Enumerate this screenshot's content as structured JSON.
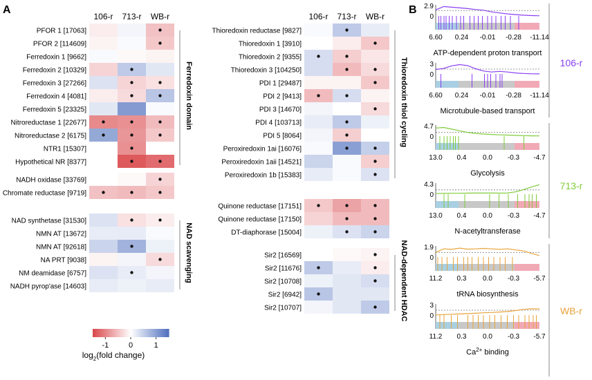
{
  "panel_a": {
    "letter": "A",
    "columns": [
      "106-r",
      "713-r",
      "WB-r"
    ],
    "colorbar": {
      "ticks": [
        {
          "label": "-1",
          "value": -1
        },
        {
          "label": "0",
          "value": 0
        },
        {
          "label": "1",
          "value": 1
        }
      ],
      "label": "log",
      "label_sub": "2",
      "label_tail": "(fold change)",
      "range": [
        -1.5,
        1.5
      ],
      "neg_color": "#d9464a",
      "pos_color": "#4f6fbd"
    }
  },
  "panel_b": {
    "letter": "B",
    "groups": [
      {
        "label": "106-r",
        "color": "#8a3ff0"
      },
      {
        "label": "713-r",
        "color": "#7fcc3a"
      },
      {
        "label": "WB-r",
        "color": "#e8a33a"
      }
    ]
  },
  "chart_data": [
    {
      "type": "heatmap",
      "title": "Ferredoxin domain / NAD scavenging (left column)",
      "columns": [
        "106-r",
        "713-r",
        "WB-r"
      ],
      "colorbar_range": [
        -1.5,
        1.5
      ],
      "groups": [
        {
          "label": "Ferredoxin domain",
          "rows": [
            {
              "name": "PFOR 1 [17063]",
              "values": [
                -0.15,
                0.1,
                -0.5
              ],
              "sig": [
                false,
                false,
                true
              ]
            },
            {
              "name": "PFOR 2 [114609]",
              "values": [
                -0.1,
                0.05,
                -0.45
              ],
              "sig": [
                false,
                false,
                true
              ]
            },
            {
              "name": "Ferredoxin 1 [9662]",
              "values": [
                0.05,
                -0.05,
                -0.1
              ],
              "sig": [
                false,
                false,
                false
              ]
            },
            {
              "name": "Ferredoxin 2 [10329]",
              "values": [
                -0.35,
                0.55,
                0.25
              ],
              "sig": [
                false,
                true,
                false
              ]
            },
            {
              "name": "Ferredoxin 3 [27266]",
              "values": [
                0.3,
                -0.35,
                -0.25
              ],
              "sig": [
                false,
                true,
                true
              ]
            },
            {
              "name": "Ferredoxin 4 [4081]",
              "values": [
                -0.15,
                -0.3,
                0.6
              ],
              "sig": [
                false,
                true,
                true
              ]
            },
            {
              "name": "Ferredoxin 5 [23325]",
              "values": [
                0.25,
                1.05,
                0.05
              ],
              "sig": [
                false,
                false,
                false
              ]
            },
            {
              "name": "Nitroreductase 1 [22677]",
              "values": [
                -0.95,
                -0.9,
                -0.55
              ],
              "sig": [
                true,
                true,
                true
              ]
            },
            {
              "name": "Nitroreductase 2 [6175]",
              "values": [
                0.9,
                -0.85,
                -0.45
              ],
              "sig": [
                true,
                true,
                true
              ]
            },
            {
              "name": "NTR1 [15307]",
              "values": [
                0.0,
                -0.9,
                0.0
              ],
              "sig": [
                false,
                true,
                false
              ]
            },
            {
              "name": "Hypothetical NR [8377]",
              "values": [
                0.0,
                -1.35,
                -1.2
              ],
              "sig": [
                false,
                true,
                true
              ]
            }
          ]
        },
        {
          "label": "",
          "rows": [
            {
              "name": "NADH oxidase [33769]",
              "values": [
                0.0,
                -0.05,
                -0.35
              ],
              "sig": [
                false,
                false,
                true
              ]
            },
            {
              "name": "Chromate reductase [9719]",
              "values": [
                -0.5,
                -0.55,
                -0.45
              ],
              "sig": [
                true,
                true,
                true
              ]
            }
          ]
        },
        {
          "label": "NAD scavenging",
          "rows": [
            {
              "name": "NAD synthetase [31530]",
              "values": [
                0.3,
                -0.25,
                -0.15
              ],
              "sig": [
                false,
                true,
                true
              ]
            },
            {
              "name": "NMN AT [13672]",
              "values": [
                0.2,
                0.2,
                0.05
              ],
              "sig": [
                false,
                false,
                false
              ]
            },
            {
              "name": "NMN AT [92618]",
              "values": [
                0.45,
                0.8,
                0.15
              ],
              "sig": [
                false,
                true,
                false
              ]
            },
            {
              "name": "NA PRT [9038]",
              "values": [
                -0.1,
                0.1,
                -0.3
              ],
              "sig": [
                false,
                false,
                true
              ]
            },
            {
              "name": "NM deamidase [6757]",
              "values": [
                0.3,
                0.2,
                0.1
              ],
              "sig": [
                false,
                true,
                false
              ]
            },
            {
              "name": "NADH pyrop'ase [14603]",
              "values": [
                0.2,
                0.15,
                0.2
              ],
              "sig": [
                false,
                false,
                false
              ]
            }
          ]
        }
      ]
    },
    {
      "type": "heatmap",
      "title": "Thioredoxin thiol cycling / NAD-dependent HDAC (right column)",
      "columns": [
        "106-r",
        "713-r",
        "WB-r"
      ],
      "colorbar_range": [
        -1.5,
        1.5
      ],
      "groups": [
        {
          "label": "Thioredoxin thiol cycling",
          "rows": [
            {
              "name": "Thioredoxin reductase [9827]",
              "values": [
                0.05,
                0.55,
                0.2
              ],
              "sig": [
                false,
                true,
                false
              ]
            },
            {
              "name": "Thioredoxin 1 [3910]",
              "values": [
                0.0,
                -0.15,
                -0.45
              ],
              "sig": [
                false,
                false,
                true
              ]
            },
            {
              "name": "Thioredoxin 2 [9355]",
              "values": [
                0.35,
                -0.4,
                -0.2
              ],
              "sig": [
                true,
                true,
                false
              ]
            },
            {
              "name": "Thioredoxin 3 [104250]",
              "values": [
                0.35,
                -0.55,
                -0.3
              ],
              "sig": [
                false,
                true,
                true
              ]
            },
            {
              "name": "PDI 1 [29487]",
              "values": [
                -0.1,
                -0.1,
                -0.45
              ],
              "sig": [
                false,
                false,
                true
              ]
            },
            {
              "name": "PDI 2 [9413]",
              "values": [
                -0.55,
                0.35,
                -0.1
              ],
              "sig": [
                true,
                true,
                false
              ]
            },
            {
              "name": "PDI 3 [14670]",
              "values": [
                0.1,
                0.0,
                -0.3
              ],
              "sig": [
                false,
                false,
                true
              ]
            },
            {
              "name": "PDI 4 [103713]",
              "values": [
                0.2,
                0.55,
                0.15
              ],
              "sig": [
                false,
                true,
                false
              ]
            },
            {
              "name": "PDI 5 [8064]",
              "values": [
                0.1,
                -0.4,
                0.0
              ],
              "sig": [
                false,
                true,
                false
              ]
            },
            {
              "name": "Peroxiredoxin 1ai [16076]",
              "values": [
                0.05,
                1.0,
                0.5
              ],
              "sig": [
                false,
                true,
                true
              ]
            },
            {
              "name": "Peroxiredoxin 1aii [14521]",
              "values": [
                0.45,
                0.05,
                -0.4
              ],
              "sig": [
                false,
                false,
                true
              ]
            },
            {
              "name": "Peroxiredoxin 1b [15383]",
              "values": [
                0.2,
                0.05,
                0.3
              ],
              "sig": [
                false,
                false,
                true
              ]
            }
          ]
        },
        {
          "label": "",
          "rows": [
            {
              "name": "Quinone reductase [17151]",
              "values": [
                -0.45,
                -0.75,
                -0.55
              ],
              "sig": [
                true,
                true,
                true
              ]
            },
            {
              "name": "Quinone reductase [17150]",
              "values": [
                -0.35,
                -0.55,
                -0.55
              ],
              "sig": [
                false,
                true,
                true
              ]
            },
            {
              "name": "DT-diaphorase [15004]",
              "values": [
                0.15,
                0.3,
                0.45
              ],
              "sig": [
                false,
                true,
                true
              ]
            }
          ]
        },
        {
          "label": "NAD-dependent HDAC",
          "rows": [
            {
              "name": "Sir2 [16569]",
              "values": [
                0.0,
                -0.05,
                -0.1
              ],
              "sig": [
                false,
                false,
                true
              ]
            },
            {
              "name": "Sir2 [11676]",
              "values": [
                0.55,
                0.2,
                -0.15
              ],
              "sig": [
                true,
                false,
                true
              ]
            },
            {
              "name": "Sir2 [10708]",
              "values": [
                0.15,
                0.25,
                0.35
              ],
              "sig": [
                false,
                false,
                true
              ]
            },
            {
              "name": "Sir2 [6942]",
              "values": [
                0.6,
                0.25,
                0.25
              ],
              "sig": [
                true,
                false,
                false
              ]
            },
            {
              "name": "Sir2 [10707]",
              "values": [
                0.1,
                0.25,
                0.55
              ],
              "sig": [
                false,
                false,
                true
              ]
            }
          ]
        }
      ]
    },
    {
      "type": "line",
      "title": "ATP-dependent proton transport",
      "group": "106-r",
      "ymax_label": "2.9",
      "ymin_label": "0",
      "ymax": 2.9,
      "threshold": 1.6,
      "xticks": [
        "6.60",
        "0.24",
        "-0.01",
        "-0.28",
        "-11.14"
      ],
      "curve": [
        1.8,
        2.8,
        2.6,
        2.4,
        2.2,
        1.9,
        1.7,
        1.2,
        0.9,
        0.6,
        0.4,
        0.2,
        0.1,
        0.05
      ],
      "hits": [
        0.03,
        0.05,
        0.08,
        0.1,
        0.13,
        0.16,
        0.2,
        0.24,
        0.27,
        0.33,
        0.37,
        0.41,
        0.45,
        0.5,
        0.54,
        0.58,
        0.63,
        0.67,
        0.72,
        0.8
      ]
    },
    {
      "type": "line",
      "title": "Microtubule-based transport",
      "group": "106-r",
      "ymax_label": "3",
      "ymin_label": "0",
      "ymax": 3.0,
      "threshold": 1.5,
      "xticks": [
        "6.60",
        "0.24",
        "-0.01",
        "-0.28",
        "-11.14"
      ],
      "curve": [
        1.4,
        1.7,
        2.5,
        2.9,
        2.6,
        1.6,
        0.9,
        0.6,
        0.8,
        0.6,
        0.3,
        0.15,
        0.05,
        0.02
      ],
      "hits": [
        0.05,
        0.35,
        0.47,
        0.5,
        0.53,
        0.58,
        0.62,
        0.64
      ]
    },
    {
      "type": "line",
      "title": "Glycolysis",
      "group": "713-r",
      "ymax_label": "4.7",
      "ymin_label": "0",
      "ymax": 4.7,
      "threshold": 1.9,
      "xticks": [
        "13.0",
        "0.4",
        "0.0",
        "-0.3",
        "-4.7"
      ],
      "curve": [
        3.9,
        4.2,
        3.4,
        2.6,
        1.8,
        1.3,
        1.0,
        0.8,
        0.6,
        0.5,
        0.35,
        0.25,
        0.15,
        0.1
      ],
      "hits": [
        0.04,
        0.08,
        0.11,
        0.14,
        0.17,
        0.19,
        0.22,
        0.66,
        0.85
      ]
    },
    {
      "type": "line",
      "title": "N-acetyltransferase",
      "group": "713-r",
      "ymax_label": "4.3",
      "ymin_label": "0",
      "ymax": 4.3,
      "threshold": 1.9,
      "xticks": [
        "13.0",
        "0.4",
        "0.0",
        "-0.3",
        "-4.7"
      ],
      "curve": [
        0.25,
        0.35,
        0.4,
        0.4,
        0.45,
        0.5,
        0.5,
        0.5,
        0.45,
        0.5,
        1.0,
        2.0,
        3.2,
        4.2
      ],
      "hits": [
        0.08,
        0.12,
        0.28,
        0.52,
        0.61,
        0.7,
        0.79,
        0.86,
        0.9,
        0.93,
        0.97
      ]
    },
    {
      "type": "line",
      "title": "tRNA biosynthesis",
      "group": "WB-r",
      "ymax_label": "1.9",
      "ymin_label": "0",
      "ymax": 1.9,
      "threshold": 0.9,
      "xticks": [
        "11.2",
        "0.3",
        "0.0",
        "-0.3",
        "-5.7"
      ],
      "curve": [
        0.9,
        1.6,
        1.5,
        1.75,
        1.55,
        1.6,
        1.7,
        1.6,
        1.5,
        1.6,
        1.4,
        1.2,
        0.7,
        0.3
      ],
      "hits": [
        0.02,
        0.06,
        0.11,
        0.17,
        0.21,
        0.27,
        0.31,
        0.35,
        0.41,
        0.46,
        0.51,
        0.56,
        0.62,
        0.67,
        0.74
      ]
    },
    {
      "type": "line",
      "title": "Ca2+ binding",
      "title_main": "Ca",
      "title_sup": "2+",
      "title_tail": " binding",
      "group": "WB-r",
      "ymax_label": "3",
      "ymin_label": "0",
      "ymax": 3.0,
      "threshold": 1.5,
      "xticks": [
        "11.2",
        "0.3",
        "0.0",
        "-0.3",
        "-5.7"
      ],
      "curve": [
        0.05,
        0.15,
        0.25,
        0.35,
        0.45,
        0.55,
        0.7,
        0.8,
        0.95,
        1.1,
        1.4,
        1.75,
        1.95,
        1.9
      ],
      "hits": [
        0.04,
        0.08,
        0.15,
        0.21,
        0.31,
        0.36,
        0.41,
        0.46,
        0.52,
        0.57,
        0.63,
        0.69,
        0.75,
        0.8,
        0.86,
        0.9,
        0.94,
        0.97
      ]
    }
  ]
}
